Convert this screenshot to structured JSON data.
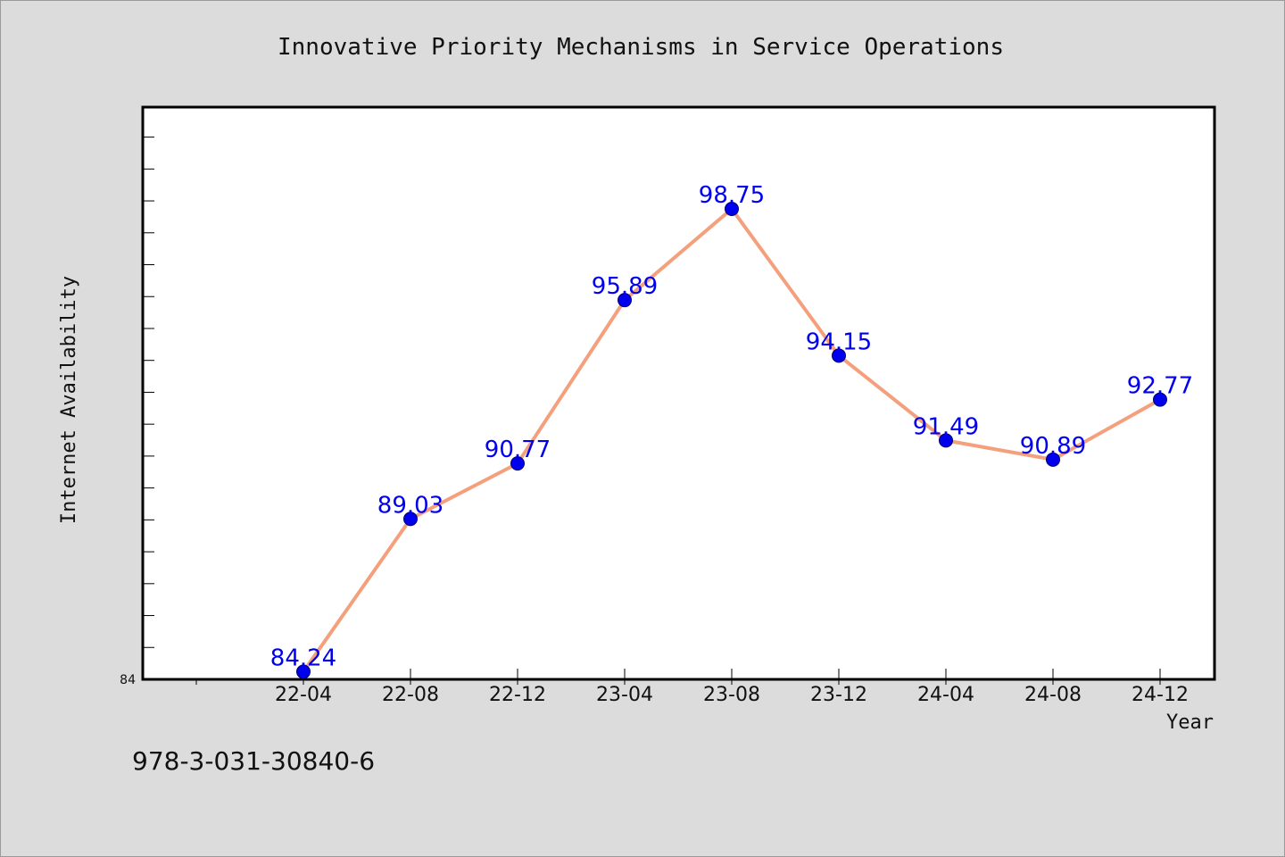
{
  "chart_data": {
    "type": "line",
    "title": "Innovative Priority Mechanisms in Service Operations",
    "xlabel": "Year",
    "ylabel": "Internet Availability",
    "categories": [
      "22-04",
      "22-08",
      "22-12",
      "23-04",
      "23-08",
      "23-12",
      "24-04",
      "24-08",
      "24-12"
    ],
    "series": [
      {
        "values": [
          84.24,
          89.03,
          90.77,
          95.89,
          98.75,
          94.15,
          91.49,
          90.89,
          92.77
        ]
      }
    ],
    "data_labels": [
      "84.24",
      "89.03",
      "90.77",
      "95.89",
      "98.75",
      "94.15",
      "91.49",
      "90.89",
      "92.77"
    ],
    "ylim": [
      84,
      101.94
    ],
    "y_tick_labels": [
      "84"
    ],
    "grid": false,
    "line_color": "#f4a07c",
    "marker_color": "#0000ee",
    "label_color": "#0000ee"
  },
  "footer_text": "978-3-031-30840-6"
}
